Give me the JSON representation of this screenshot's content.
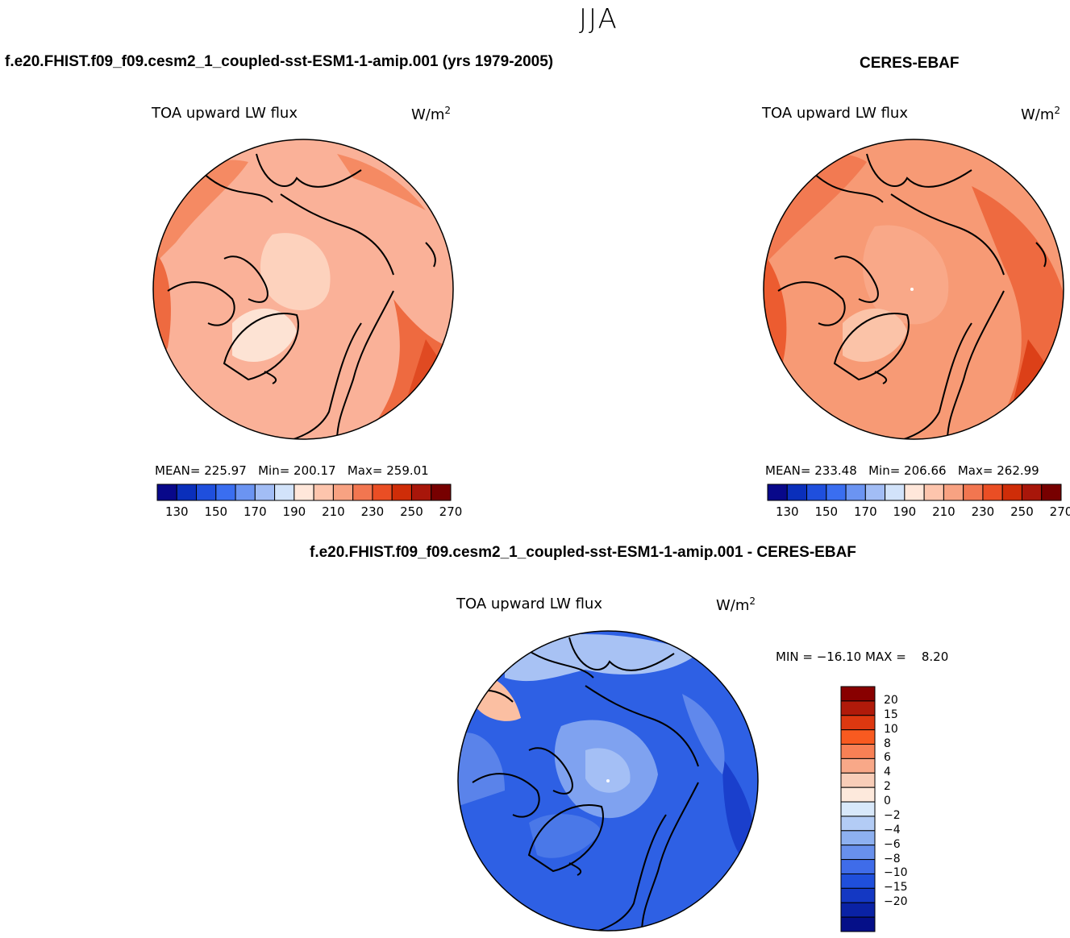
{
  "season": "JJA",
  "panels": {
    "model": {
      "title": "f.e20.FHIST.f09_f09.cesm2_1_coupled-sst-ESM1-1-amip.001 (yrs 1979-2005)",
      "field": "TOA upward LW flux",
      "units": "W/m",
      "units_exp": "2",
      "mean_label": "MEAN=",
      "mean": "225.97",
      "min_label": "Min=",
      "min": "200.17",
      "max_label": "Max=",
      "max": "259.01"
    },
    "obs": {
      "title": "CERES-EBAF",
      "field": "TOA upward LW flux",
      "units": "W/m",
      "units_exp": "2",
      "mean_label": "MEAN=",
      "mean": "233.48",
      "min_label": "Min=",
      "min": "206.66",
      "max_label": "Max=",
      "max": "262.99"
    },
    "diff": {
      "title": "f.e20.FHIST.f09_f09.cesm2_1_coupled-sst-ESM1-1-amip.001 - CERES-EBAF",
      "field": "TOA upward LW flux",
      "units": "W/m",
      "units_exp": "2",
      "minmax_text": "MIN = −16.10 MAX =    8.20"
    }
  },
  "colorbar_main": {
    "colors": [
      "#08088a",
      "#0a2fbb",
      "#1f4fdd",
      "#3a6ef0",
      "#6b94f2",
      "#a2bdf5",
      "#d2e3fa",
      "#ffe7da",
      "#fdc5ad",
      "#f8a282",
      "#f27650",
      "#ea4e24",
      "#cf2d08",
      "#a8160a",
      "#770000"
    ],
    "tick_labels": [
      "130",
      "150",
      "170",
      "190",
      "210",
      "230",
      "250",
      "270"
    ]
  },
  "colorbar_diff": {
    "colors": [
      "#880000",
      "#b01a0a",
      "#dd3810",
      "#f85a20",
      "#f88055",
      "#f8a888",
      "#f8cdb8",
      "#fde9dc",
      "#d8e8fa",
      "#b3ccf5",
      "#8db0f0",
      "#6890ec",
      "#3f6ce9",
      "#1f4fdb",
      "#1438c3",
      "#0a22a5",
      "#050f88"
    ],
    "tick_labels": [
      "20",
      "15",
      "10",
      "8",
      "6",
      "4",
      "2",
      "0",
      "−2",
      "−4",
      "−6",
      "−8",
      "−10",
      "−15",
      "−20"
    ]
  },
  "map_fills": {
    "model_base": "#fab198",
    "obs_base": "#f79a75",
    "diff_base": "#2e60e4"
  }
}
